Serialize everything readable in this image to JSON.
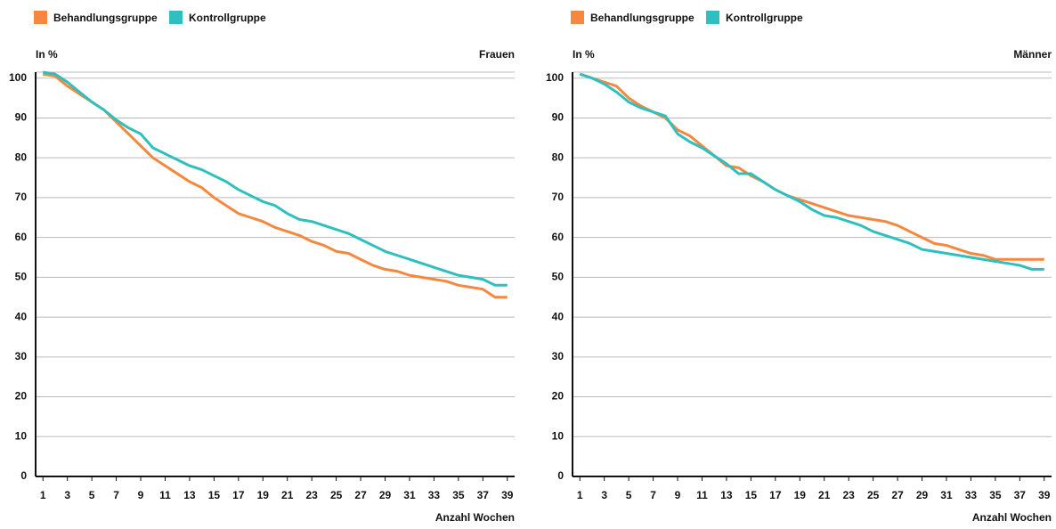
{
  "chart_data": [
    {
      "type": "line",
      "subtitle": "Frauen",
      "ylabel": "In %",
      "xlabel": "Anzahl Wochen",
      "x": [
        1,
        2,
        3,
        4,
        5,
        6,
        7,
        8,
        9,
        10,
        11,
        12,
        13,
        14,
        15,
        16,
        17,
        18,
        19,
        20,
        21,
        22,
        23,
        24,
        25,
        26,
        27,
        28,
        29,
        30,
        31,
        32,
        33,
        34,
        35,
        36,
        37,
        38,
        39
      ],
      "series": [
        {
          "name": "Behandlungsgruppe",
          "color": "#f5873f",
          "values": [
            101,
            100.5,
            98,
            96,
            94,
            92,
            89,
            86,
            83,
            80,
            78,
            76,
            74,
            72.5,
            70,
            68,
            66,
            65,
            64,
            62.5,
            61.5,
            60.5,
            59,
            58,
            56.5,
            56,
            54.5,
            53,
            52,
            51.5,
            50.5,
            50,
            49.5,
            49,
            48,
            47.5,
            47,
            45,
            45
          ]
        },
        {
          "name": "Kontrollgruppe",
          "color": "#2fbfbf",
          "values": [
            101.5,
            101,
            99,
            96.5,
            94,
            92,
            89.5,
            87.5,
            86,
            82.5,
            81,
            79.5,
            78,
            77,
            75.5,
            74,
            72,
            70.5,
            69,
            68,
            66,
            64.5,
            64,
            63,
            62,
            61,
            59.5,
            58,
            56.5,
            55.5,
            54.5,
            53.5,
            52.5,
            51.5,
            50.5,
            50,
            49.5,
            48,
            48
          ]
        }
      ],
      "xlim": [
        0.4,
        39.6
      ],
      "xticks": [
        1,
        3,
        5,
        7,
        9,
        11,
        13,
        15,
        17,
        19,
        21,
        23,
        25,
        27,
        29,
        31,
        33,
        35,
        37,
        39
      ],
      "ylim": [
        0,
        101.5
      ],
      "yticks": [
        0,
        10,
        20,
        30,
        40,
        50,
        60,
        70,
        80,
        90,
        100
      ],
      "grid": true,
      "legend": "top-left"
    },
    {
      "type": "line",
      "subtitle": "Männer",
      "ylabel": "In %",
      "xlabel": "Anzahl Wochen",
      "x": [
        1,
        2,
        3,
        4,
        5,
        6,
        7,
        8,
        9,
        10,
        11,
        12,
        13,
        14,
        15,
        16,
        17,
        18,
        19,
        20,
        21,
        22,
        23,
        24,
        25,
        26,
        27,
        28,
        29,
        30,
        31,
        32,
        33,
        34,
        35,
        36,
        37,
        38,
        39
      ],
      "series": [
        {
          "name": "Behandlungsgruppe",
          "color": "#f5873f",
          "values": [
            101,
            100,
            99,
            98,
            95,
            93,
            91.5,
            90,
            87,
            85.5,
            83,
            80.5,
            78,
            77.5,
            75.5,
            74,
            72,
            70.5,
            69.5,
            68.5,
            67.5,
            66.5,
            65.5,
            65,
            64.5,
            64,
            63,
            61.5,
            60,
            58.5,
            58,
            57,
            56,
            55.5,
            54.5,
            54.5,
            54.5,
            54.5,
            54.5
          ]
        },
        {
          "name": "Kontrollgruppe",
          "color": "#2fbfbf",
          "values": [
            101,
            100,
            98.5,
            96.5,
            94,
            92.5,
            91.5,
            90.5,
            86,
            84,
            82.5,
            80.5,
            78.5,
            76,
            76,
            74,
            72,
            70.5,
            69,
            67,
            65.5,
            65,
            64,
            63,
            61.5,
            60.5,
            59.5,
            58.5,
            57,
            56.5,
            56,
            55.5,
            55,
            54.5,
            54,
            53.5,
            53,
            52,
            52
          ]
        }
      ],
      "xlim": [
        0.4,
        39.6
      ],
      "xticks": [
        1,
        3,
        5,
        7,
        9,
        11,
        13,
        15,
        17,
        19,
        21,
        23,
        25,
        27,
        29,
        31,
        33,
        35,
        37,
        39
      ],
      "ylim": [
        0,
        101.5
      ],
      "yticks": [
        0,
        10,
        20,
        30,
        40,
        50,
        60,
        70,
        80,
        90,
        100
      ],
      "grid": true,
      "legend": "top-left"
    }
  ]
}
